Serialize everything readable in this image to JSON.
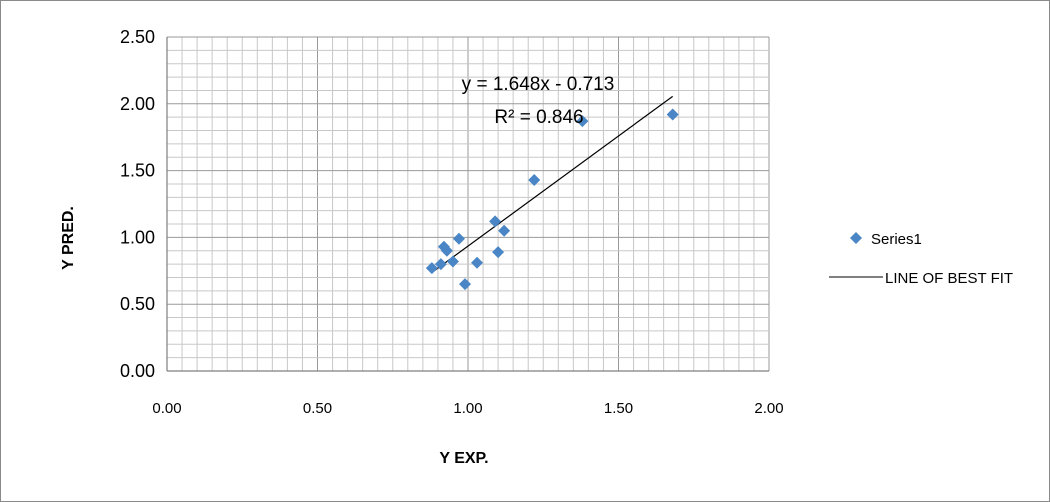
{
  "chart_data": {
    "type": "scatter",
    "title": "",
    "xlabel": "Y EXP.",
    "ylabel": "Y PRED.",
    "xlim": [
      0,
      2
    ],
    "ylim": [
      0,
      2.5
    ],
    "x_ticks": [
      "0.00",
      "0.50",
      "1.00",
      "1.50",
      "2.00"
    ],
    "y_ticks": [
      "0.00",
      "0.50",
      "1.00",
      "1.50",
      "2.00",
      "2.50"
    ],
    "grid": true,
    "legend_position": "right",
    "series": [
      {
        "name": "Series1",
        "color": "#4a86c5",
        "marker": "diamond",
        "points": [
          {
            "x": 0.88,
            "y": 0.77
          },
          {
            "x": 0.91,
            "y": 0.8
          },
          {
            "x": 0.92,
            "y": 0.93
          },
          {
            "x": 0.93,
            "y": 0.9
          },
          {
            "x": 0.95,
            "y": 0.82
          },
          {
            "x": 0.97,
            "y": 0.99
          },
          {
            "x": 0.99,
            "y": 0.65
          },
          {
            "x": 1.03,
            "y": 0.81
          },
          {
            "x": 1.09,
            "y": 1.12
          },
          {
            "x": 1.1,
            "y": 0.89
          },
          {
            "x": 1.12,
            "y": 1.05
          },
          {
            "x": 1.22,
            "y": 1.43
          },
          {
            "x": 1.38,
            "y": 1.87
          },
          {
            "x": 1.68,
            "y": 1.92
          }
        ]
      }
    ],
    "trendline": {
      "name": "LINE OF BEST FIT",
      "color": "#000000",
      "slope": 1.648,
      "intercept": -0.713,
      "x_start": 0.88,
      "x_end": 1.68,
      "equation_label": "y = 1.648x - 0.713",
      "r2_label": "R² = 0.846"
    }
  }
}
